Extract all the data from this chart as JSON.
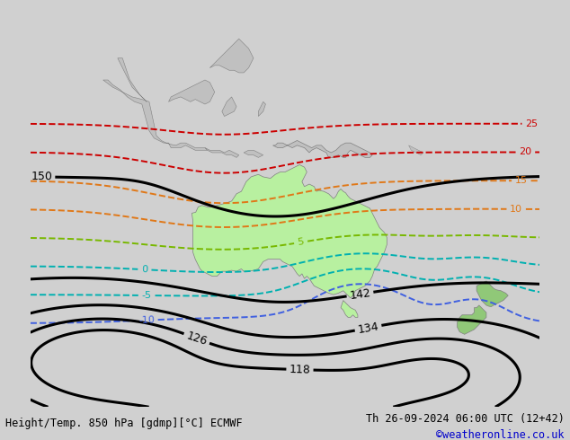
{
  "title_left": "Height/Temp. 850 hPa [gdmp][°C] ECMWF",
  "title_right": "Th 26-09-2024 06:00 UTC (12+42)",
  "copyright": "©weatheronline.co.uk",
  "copyright_color": "#0000cc",
  "ocean_color": "#d0d0d0",
  "land_color": "#c0c0c0",
  "aus_green": "#b8f0a0",
  "green_land_color": "#90c878",
  "fig_width": 6.34,
  "fig_height": 4.9,
  "dpi": 100,
  "extent_lon_min": 80,
  "extent_lon_max": 185,
  "extent_lat_min": -62,
  "extent_lat_max": 22,
  "footer_fontsize": 8.5,
  "footer_color": "#000000",
  "geo_color": "#000000",
  "geo_lw": 2.2,
  "geo_levels": [
    118,
    126,
    134,
    142,
    150
  ],
  "temp_orange_color": "#e07818",
  "temp_red_color": "#cc0000",
  "temp_green_color": "#78b800",
  "temp_cyan_color": "#00b0b0",
  "temp_blue_color": "#4060e0",
  "temp_lw": 1.4,
  "coastline_color": "#808080",
  "coastline_lw": 0.5
}
